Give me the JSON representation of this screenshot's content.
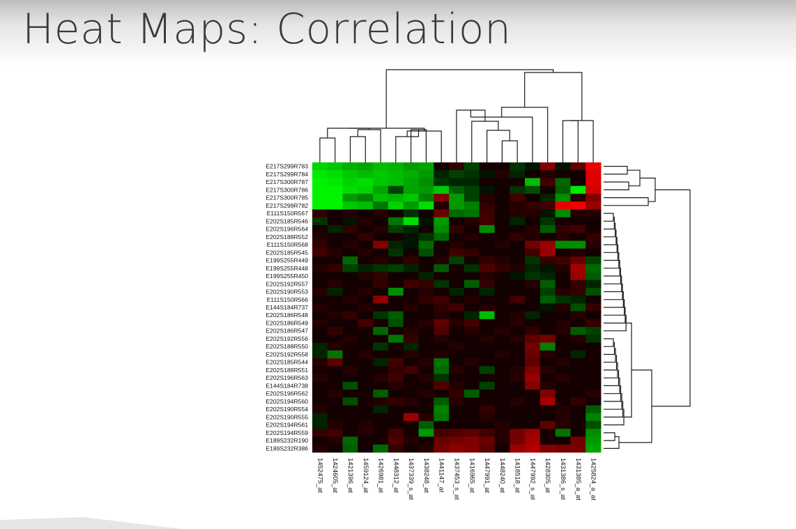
{
  "slide": {
    "title": "Heat Maps: Correlation"
  },
  "chart_data": {
    "type": "heatmap",
    "title": "",
    "xlabel": "",
    "ylabel": "",
    "legend": "none",
    "dendrograms": {
      "columns": "top",
      "rows": "right"
    },
    "colors": {
      "positive": "#ff0000",
      "negative": "#00ff00",
      "neutral": "#000000"
    },
    "rows": [
      "E217S299R783",
      "E217S299R784",
      "E217S300R787",
      "E217S300R786",
      "E217S300R785",
      "E217S299R782",
      "E111S150R567",
      "E202S185R546",
      "E202S196R564",
      "E202S188R552",
      "E111S150R568",
      "E202S185R545",
      "E199S255R449",
      "E199S255R448",
      "E199S255R450",
      "E202S192R557",
      "E202S190R553",
      "E111S150R566",
      "E144S184R737",
      "E202S186R548",
      "E202S186R549",
      "E202S186R547",
      "E202S192R556",
      "E202S188R550",
      "E202S192R558",
      "E202S185R544",
      "E202S188R551",
      "E202S196R563",
      "E144S184R738",
      "E202S196R562",
      "E202S194R560",
      "E202S190R554",
      "E202S190R555",
      "E202S194R561",
      "E202S194R559",
      "E189S232R190",
      "E189S232R386"
    ],
    "columns": [
      "1452475_at",
      "1424605_at",
      "1421396_at",
      "1459124_at",
      "1426981_at",
      "1448312_at",
      "1437339_s_at",
      "1438248_at",
      "1441147_at",
      "1437453_s_at",
      "1416965_at",
      "1447991_at",
      "1448240_at",
      "1418518_at",
      "1447992_s_at",
      "1428305_at",
      "1431386_s_at",
      "1431385_a_at",
      "1425824_a_at"
    ],
    "values": [
      [
        -0.8,
        -0.75,
        -0.65,
        -0.6,
        -0.7,
        -0.65,
        -0.55,
        -0.6,
        0.05,
        0.15,
        -0.2,
        0.05,
        0.05,
        -0.15,
        -0.05,
        0.45,
        -0.05,
        0.3,
        0.9
      ],
      [
        -0.9,
        -0.85,
        -0.75,
        -0.7,
        -0.75,
        -0.7,
        -0.65,
        -0.55,
        -0.1,
        -0.2,
        -0.15,
        -0.05,
        0.1,
        -0.1,
        0.05,
        0.1,
        0.05,
        0.05,
        0.85
      ],
      [
        -0.95,
        -0.9,
        -0.8,
        -0.85,
        -0.75,
        -0.7,
        -0.6,
        -0.5,
        -0.15,
        -0.1,
        -0.1,
        0.05,
        0.05,
        0.05,
        -0.7,
        0.2,
        -0.35,
        0.05,
        0.85
      ],
      [
        -0.95,
        -0.95,
        -0.85,
        -0.8,
        -0.6,
        -0.2,
        -0.6,
        -0.55,
        -0.75,
        -0.3,
        -0.2,
        -0.05,
        0.05,
        -0.15,
        -0.25,
        0.05,
        -0.3,
        -0.9,
        0.8
      ],
      [
        -0.95,
        -0.95,
        -0.55,
        -0.45,
        -0.7,
        -0.65,
        -0.75,
        -0.45,
        0.45,
        -0.55,
        -0.2,
        0.1,
        0.05,
        0.2,
        0.05,
        -0.1,
        -0.5,
        0.1,
        0.45
      ],
      [
        -0.95,
        -0.95,
        -0.75,
        -0.7,
        -0.4,
        -0.8,
        -0.55,
        -0.85,
        0.1,
        -0.55,
        -0.45,
        0.15,
        0.05,
        0.1,
        0.15,
        0.2,
        0.9,
        0.95,
        0.55
      ],
      [
        0.15,
        0.05,
        0.1,
        0.05,
        0.1,
        0.05,
        -0.15,
        0.05,
        0.35,
        -0.35,
        -0.4,
        0.2,
        0.05,
        0.1,
        0.1,
        -0.05,
        -0.5,
        0.1,
        0.1
      ],
      [
        -0.15,
        0.05,
        -0.05,
        0.1,
        0.05,
        -0.4,
        -0.85,
        -0.05,
        -0.55,
        0.05,
        0.1,
        0.2,
        0.05,
        -0.1,
        0.05,
        -0.15,
        0.05,
        0.05,
        0.05
      ],
      [
        0.05,
        -0.1,
        0.15,
        0.05,
        0.1,
        -0.2,
        -0.1,
        0.05,
        -0.5,
        0.15,
        0.05,
        -0.5,
        0.05,
        0.05,
        0.1,
        -0.3,
        0.15,
        0.2,
        0.05
      ],
      [
        0.1,
        0.05,
        0.05,
        0.15,
        0.05,
        0.05,
        -0.05,
        -0.15,
        -0.35,
        0.05,
        0.1,
        0.05,
        0.05,
        0.15,
        0.1,
        0.05,
        0.1,
        0.05,
        0.15
      ],
      [
        0.15,
        0.05,
        0.1,
        0.05,
        0.45,
        -0.1,
        -0.05,
        -0.35,
        0.05,
        0.1,
        0.05,
        0.05,
        0.1,
        0.05,
        0.4,
        0.55,
        -0.5,
        -0.5,
        0.1
      ],
      [
        0.2,
        0.1,
        0.05,
        0.1,
        0.05,
        -0.15,
        0.05,
        -0.25,
        0.05,
        0.2,
        0.15,
        0.05,
        0.05,
        0.05,
        0.2,
        0.55,
        0.05,
        0.1,
        0.05
      ],
      [
        0.05,
        0.05,
        -0.35,
        0.05,
        0.1,
        0.05,
        0.15,
        0.05,
        0.1,
        -0.2,
        0.05,
        0.15,
        0.1,
        0.05,
        -0.15,
        0.15,
        0.2,
        0.35,
        -0.2
      ],
      [
        0.1,
        0.15,
        -0.2,
        -0.1,
        -0.15,
        -0.2,
        -0.1,
        0.05,
        -0.3,
        0.05,
        -0.15,
        0.25,
        0.15,
        0.1,
        -0.1,
        -0.05,
        0.1,
        0.6,
        -0.35
      ],
      [
        0.05,
        0.05,
        0.05,
        0.1,
        0.15,
        0.05,
        0.05,
        -0.1,
        0.05,
        0.05,
        0.05,
        0.1,
        0.05,
        -0.05,
        -0.15,
        -0.1,
        0.05,
        0.55,
        -0.3
      ],
      [
        0.05,
        0.1,
        0.05,
        0.05,
        0.15,
        0.05,
        0.2,
        0.15,
        -0.15,
        0.05,
        -0.3,
        0.15,
        0.05,
        0.05,
        0.1,
        -0.3,
        0.05,
        0.15,
        -0.1
      ],
      [
        0.1,
        -0.1,
        0.05,
        0.1,
        0.05,
        -0.5,
        0.05,
        0.1,
        0.05,
        -0.1,
        0.05,
        -0.1,
        0.05,
        0.05,
        0.05,
        -0.2,
        0.1,
        0.15,
        -0.25
      ],
      [
        0.05,
        0.05,
        0.1,
        0.05,
        0.5,
        0.05,
        0.05,
        0.15,
        0.2,
        0.05,
        0.1,
        0.05,
        0.05,
        0.2,
        0.05,
        -0.3,
        -0.15,
        -0.1,
        0.05
      ],
      [
        0.1,
        0.05,
        0.05,
        0.1,
        0.05,
        0.05,
        0.1,
        0.05,
        0.15,
        0.2,
        0.05,
        0.1,
        0.05,
        0.05,
        0.05,
        -0.05,
        0.1,
        -0.25,
        0.15
      ],
      [
        0.05,
        0.1,
        0.15,
        0.05,
        -0.15,
        -0.3,
        0.05,
        0.05,
        0.1,
        0.05,
        -0.1,
        -0.7,
        0.05,
        0.1,
        -0.1,
        0.05,
        0.05,
        0.1,
        0.05
      ],
      [
        0.1,
        0.05,
        0.05,
        0.2,
        0.05,
        -0.25,
        0.05,
        0.1,
        0.3,
        0.1,
        0.2,
        0.05,
        0.05,
        0.1,
        0.05,
        0.05,
        0.1,
        0.05,
        0.15
      ],
      [
        0.05,
        0.15,
        0.05,
        0.05,
        -0.35,
        0.05,
        0.1,
        0.05,
        0.25,
        0.05,
        0.1,
        0.05,
        0.1,
        0.05,
        0.15,
        0.05,
        0.1,
        -0.3,
        -0.2
      ],
      [
        0.05,
        0.05,
        0.1,
        0.05,
        0.05,
        -0.4,
        0.15,
        0.05,
        0.1,
        0.05,
        0.05,
        0.1,
        0.05,
        0.1,
        0.3,
        0.4,
        0.05,
        0.1,
        -0.15
      ],
      [
        -0.1,
        0.1,
        0.05,
        0.05,
        -0.15,
        0.05,
        -0.1,
        0.05,
        0.05,
        0.1,
        0.05,
        0.05,
        0.05,
        0.05,
        0.4,
        -0.45,
        0.05,
        0.05,
        0.05
      ],
      [
        -0.1,
        -0.4,
        0.05,
        0.1,
        0.05,
        0.05,
        0.1,
        0.05,
        0.1,
        0.05,
        0.05,
        0.05,
        0.1,
        0.05,
        0.35,
        0.1,
        0.05,
        -0.1,
        0.05
      ],
      [
        0.1,
        0.3,
        0.05,
        0.05,
        -0.1,
        0.2,
        0.05,
        0.1,
        -0.4,
        0.05,
        0.1,
        0.05,
        0.05,
        0.05,
        0.3,
        0.05,
        0.1,
        0.05,
        0.05
      ],
      [
        0.05,
        0.05,
        0.1,
        0.05,
        0.05,
        0.15,
        0.2,
        0.05,
        -0.35,
        0.1,
        0.05,
        -0.2,
        0.05,
        0.1,
        0.45,
        0.1,
        0.05,
        0.05,
        0.05
      ],
      [
        0.1,
        0.05,
        0.05,
        0.05,
        0.1,
        0.2,
        0.05,
        0.1,
        -0.15,
        0.05,
        0.05,
        0.05,
        0.05,
        0.1,
        0.55,
        0.05,
        0.1,
        0.05,
        0.05
      ],
      [
        0.05,
        0.05,
        -0.25,
        0.05,
        0.05,
        0.1,
        0.05,
        0.05,
        0.25,
        0.1,
        0.05,
        -0.2,
        0.05,
        0.05,
        0.45,
        0.1,
        0.05,
        0.05,
        0.05
      ],
      [
        0.05,
        0.1,
        0.05,
        0.05,
        -0.3,
        0.05,
        0.05,
        0.1,
        0.05,
        0.15,
        -0.3,
        0.05,
        0.05,
        0.05,
        0.05,
        0.45,
        0.05,
        0.05,
        0.1
      ],
      [
        0.05,
        0.05,
        -0.25,
        0.05,
        0.1,
        0.15,
        0.1,
        0.05,
        -0.3,
        0.1,
        0.05,
        0.05,
        0.05,
        0.1,
        0.05,
        0.6,
        0.05,
        0.15,
        0.05
      ],
      [
        0.1,
        0.05,
        0.05,
        0.05,
        -0.1,
        0.05,
        0.05,
        0.05,
        -0.45,
        0.05,
        0.05,
        0.15,
        0.05,
        0.05,
        0.05,
        0.05,
        0.1,
        0.05,
        -0.3
      ],
      [
        -0.1,
        0.05,
        0.05,
        0.05,
        0.05,
        0.05,
        0.55,
        0.1,
        -0.4,
        0.05,
        0.05,
        0.1,
        0.05,
        0.05,
        0.05,
        0.05,
        0.1,
        0.05,
        -0.45
      ],
      [
        -0.1,
        0.1,
        0.05,
        0.1,
        0.05,
        0.05,
        0.05,
        -0.3,
        0.05,
        0.05,
        0.05,
        0.05,
        0.1,
        0.05,
        0.05,
        0.3,
        0.1,
        0.05,
        -0.25
      ],
      [
        0.15,
        0.2,
        0.05,
        0.1,
        0.05,
        0.2,
        0.05,
        -0.55,
        0.2,
        0.25,
        0.3,
        0.2,
        0.1,
        0.4,
        0.55,
        0.05,
        -0.4,
        0.05,
        -0.5
      ],
      [
        0.05,
        0.1,
        -0.35,
        0.05,
        0.05,
        0.25,
        0.1,
        0.05,
        0.35,
        0.4,
        0.45,
        0.35,
        0.1,
        0.4,
        0.6,
        0.05,
        0.05,
        0.4,
        -0.55
      ],
      [
        0.1,
        0.05,
        -0.3,
        0.05,
        -0.35,
        0.15,
        0.05,
        0.1,
        0.4,
        0.5,
        0.45,
        0.3,
        0.05,
        0.55,
        0.65,
        0.45,
        0.4,
        0.4,
        -0.6
      ]
    ]
  }
}
